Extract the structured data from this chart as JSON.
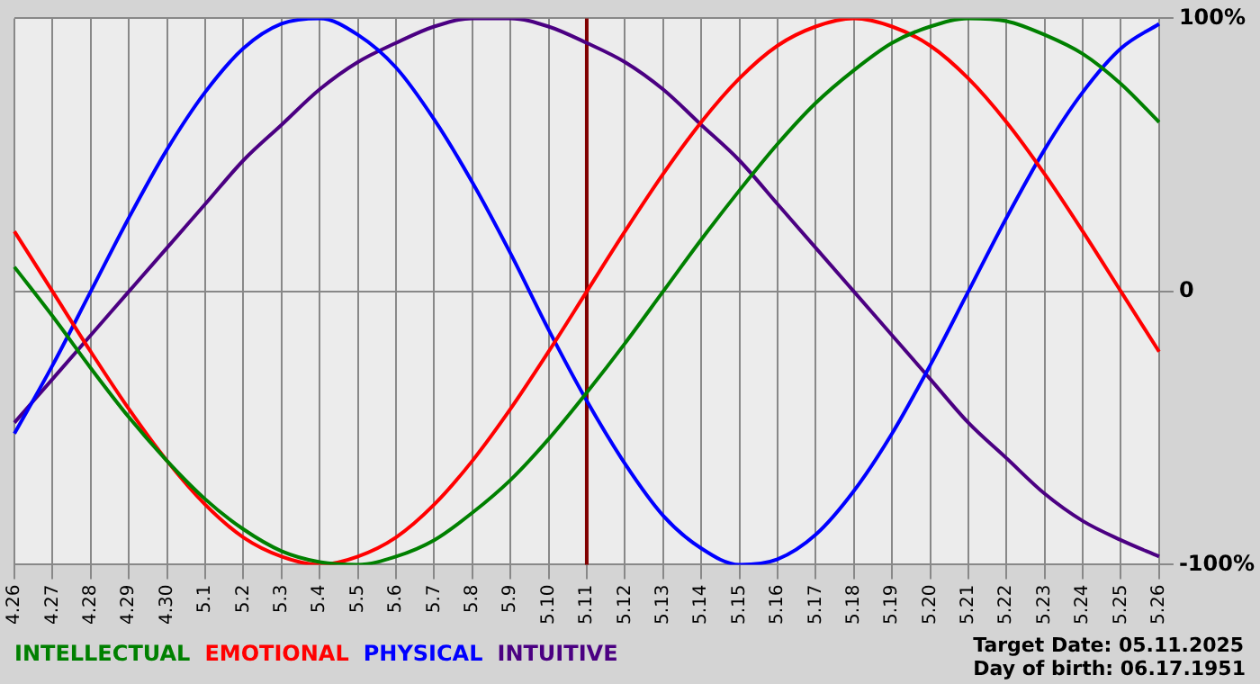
{
  "chart_data": {
    "type": "line",
    "categories": [
      "4.26",
      "4.27",
      "4.28",
      "4.29",
      "4.30",
      "5.1",
      "5.2",
      "5.3",
      "5.4",
      "5.5",
      "5.6",
      "5.7",
      "5.8",
      "5.9",
      "5.10",
      "5.11",
      "5.12",
      "5.13",
      "5.14",
      "5.15",
      "5.16",
      "5.17",
      "5.18",
      "5.19",
      "5.20",
      "5.21",
      "5.22",
      "5.23",
      "5.24",
      "5.25",
      "5.26"
    ],
    "series": [
      {
        "name": "INTELLECTUAL",
        "color": "#008000",
        "values": [
          9,
          -9,
          -28,
          -46,
          -62,
          -76,
          -87,
          -95,
          -99,
          -100,
          -97,
          -91,
          -81,
          -69,
          -54,
          -37,
          -19,
          0,
          19,
          37,
          54,
          69,
          81,
          91,
          97,
          100,
          99,
          94,
          87,
          76,
          62
        ]
      },
      {
        "name": "EMOTIONAL",
        "color": "#ff0000",
        "values": [
          22,
          0,
          -22,
          -43,
          -62,
          -78,
          -90,
          -97,
          -100,
          -97,
          -90,
          -78,
          -62,
          -43,
          -22,
          0,
          22,
          43,
          62,
          78,
          90,
          97,
          100,
          97,
          90,
          78,
          62,
          43,
          22,
          0,
          -22
        ]
      },
      {
        "name": "PHYSICAL",
        "color": "#0000ff",
        "values": [
          -52,
          -27,
          0,
          27,
          52,
          73,
          89,
          98,
          100,
          94,
          82,
          63,
          40,
          14,
          -14,
          -40,
          -63,
          -82,
          -94,
          -100,
          -98,
          -89,
          -73,
          -52,
          -27,
          0,
          27,
          52,
          73,
          89,
          98
        ]
      },
      {
        "name": "INTUITIVE",
        "color": "#4b0082",
        "values": [
          -48,
          -32,
          -16,
          0,
          16,
          32,
          48,
          61,
          74,
          84,
          91,
          97,
          100,
          100,
          97,
          91,
          84,
          74,
          61,
          48,
          32,
          16,
          0,
          -16,
          -32,
          -48,
          -61,
          -74,
          -84,
          -91,
          -97
        ]
      }
    ],
    "ylim": [
      -100,
      100
    ],
    "yticks": [
      {
        "value": 100,
        "label": "100%"
      },
      0,
      {
        "value": -100,
        "label": "-100%"
      }
    ],
    "grid": true,
    "legend": "bottom",
    "marker": "none",
    "line_style": "solid",
    "ref_lines": [
      {
        "axis": "x",
        "value": "5.11",
        "color": "#800000"
      }
    ],
    "annotations": [
      "Target Date: 05.11.2025",
      "Day of birth: 06.17.1951"
    ]
  }
}
